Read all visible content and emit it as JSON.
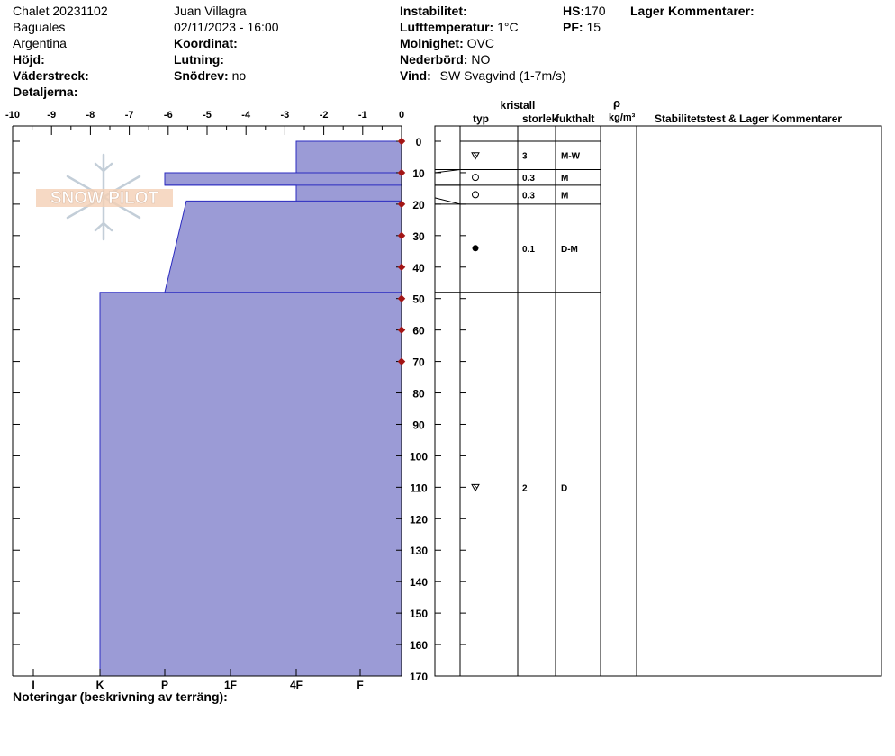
{
  "header": {
    "site": "Chalet 20231102",
    "observer": "Juan Villagra",
    "location": "Baguales",
    "datetime": "02/11/2023 - 16:00",
    "country": "Argentina",
    "coord_label": "Koordinat:",
    "elevation_label": "Höjd:",
    "slope_label": "Lutning:",
    "aspect_label": "Väderstreck:",
    "wind_loading_label": "Snödrev:",
    "wind_loading_value": "no",
    "details_label": "Detaljerna:",
    "instability_label": "Instabilitet:",
    "air_temp_label": "Lufttemperatur:",
    "air_temp_value": "1°C",
    "sky_label": "Molnighet:",
    "sky_value": "OVC",
    "precip_label": "Nederbörd:",
    "precip_value": "NO",
    "wind_label": "Vind:",
    "wind_value": "SW Svagvind (1-7m/s)",
    "hs_label": "HS:",
    "hs_value": "170",
    "pf_label": "PF:",
    "pf_value": "15",
    "layer_comments_label": "Lager Kommentarer:"
  },
  "column_headers": {
    "crystal": "kristall",
    "type": "typ",
    "size": "storlek",
    "moisture": "fukthalt",
    "rho": "ρ",
    "density_unit": "kg/m³",
    "stability": "Stabilitetstest & Lager Kommentarer"
  },
  "watermark": "SNOW PILOT",
  "notes_label": "Noteringar (beskrivning av terräng):",
  "chart_data": {
    "type": "area",
    "temp_ticks": [
      "-10",
      "-9",
      "-8",
      "-7",
      "-6",
      "-5",
      "-4",
      "-3",
      "-2",
      "-1",
      "0"
    ],
    "depth_ticks": [
      "0",
      "10",
      "20",
      "30",
      "40",
      "50",
      "60",
      "70",
      "80",
      "90",
      "100",
      "110",
      "120",
      "130",
      "140",
      "150",
      "160",
      "170"
    ],
    "hardness_ticks": [
      "I",
      "K",
      "P",
      "1F",
      "4F",
      "F"
    ],
    "depth_range": [
      0,
      170
    ],
    "temp_range": [
      -10,
      0
    ],
    "temperature_points_depth": [
      0,
      10,
      20,
      30,
      40,
      50,
      60,
      70
    ],
    "hardness_profile": [
      {
        "top": 0,
        "bottom": 10,
        "hardness": "4F"
      },
      {
        "top": 10,
        "bottom": 14,
        "hardness": "P+"
      },
      {
        "top": 14,
        "bottom": 19,
        "hardness": "4F"
      },
      {
        "top": 19,
        "bottom": 48,
        "hardness": "P to 1F-"
      },
      {
        "top": 48,
        "bottom": 170,
        "hardness": "K"
      }
    ],
    "layers": [
      {
        "top": 0,
        "bottom": 9,
        "type": "depth-hoar-icon",
        "size": "3",
        "moisture": "M-W"
      },
      {
        "top": 9,
        "bottom": 14,
        "type": "circle-icon",
        "size": "0.3",
        "moisture": "M"
      },
      {
        "top": 14,
        "bottom": 20,
        "type": "circle-icon",
        "size": "0.3",
        "moisture": "M"
      },
      {
        "top": 20,
        "bottom": 48,
        "type": "filled-circle-icon",
        "size": "0.1",
        "moisture": "D-M"
      },
      {
        "top": 48,
        "bottom": 170,
        "type": "depth-hoar-icon",
        "size": "2",
        "moisture": "D"
      }
    ]
  }
}
